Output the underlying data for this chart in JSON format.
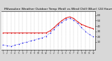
{
  "title": "   Milwaukee Weather Outdoor Temp (Red) vs Wind Chill (Blue) (24 Hours)",
  "title_fontsize": 3.2,
  "background_color": "#d8d8d8",
  "plot_bg_color": "#ffffff",
  "time_labels": [
    "1",
    "2",
    "3",
    "4",
    "5",
    "6",
    "7",
    "8",
    "9",
    "10",
    "11",
    "12",
    "1",
    "2",
    "3",
    "4",
    "5",
    "6",
    "7",
    "8",
    "9",
    "10",
    "11",
    "12"
  ],
  "temp_red": [
    27,
    27,
    27,
    27,
    27,
    27,
    27,
    27,
    27,
    27,
    27,
    27,
    31,
    37,
    44,
    50,
    55,
    57,
    54,
    48,
    43,
    40,
    37,
    35
  ],
  "wind_chill_blue": [
    5,
    3,
    2,
    4,
    6,
    8,
    10,
    12,
    14,
    16,
    18,
    21,
    27,
    34,
    41,
    47,
    52,
    54,
    51,
    45,
    37,
    30,
    24,
    20
  ],
  "y_ticks": [
    10,
    20,
    30,
    40,
    50,
    60
  ],
  "ylim": [
    -5,
    68
  ],
  "red_color": "#dd0000",
  "blue_color": "#0000ee",
  "grid_color": "#999999"
}
